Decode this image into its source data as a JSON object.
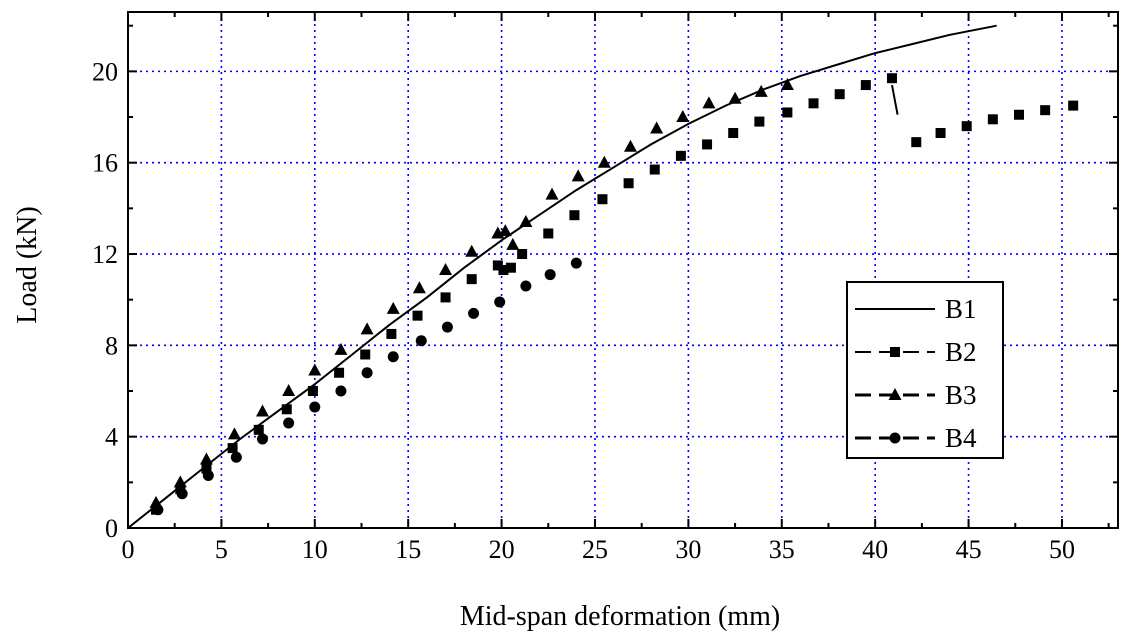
{
  "chart_data": {
    "type": "scatter",
    "xlabel": "Mid-span deformation (mm)",
    "ylabel": "Load (kN)",
    "xlim": [
      0,
      53
    ],
    "ylim": [
      0,
      22.6
    ],
    "xticks": [
      0,
      5,
      10,
      15,
      20,
      25,
      30,
      35,
      40,
      45,
      50
    ],
    "yticks": [
      0,
      4,
      8,
      12,
      16,
      20
    ],
    "grid": true,
    "grid_style": "dotted blue",
    "legend_position": "center-right",
    "series": [
      {
        "name": "B1",
        "style": "solid line",
        "points": [
          [
            0,
            0
          ],
          [
            2,
            1.3
          ],
          [
            4,
            2.6
          ],
          [
            6,
            3.9
          ],
          [
            8,
            5.1
          ],
          [
            10,
            6.3
          ],
          [
            12,
            7.6
          ],
          [
            14,
            8.9
          ],
          [
            16,
            10.1
          ],
          [
            18,
            11.4
          ],
          [
            20,
            12.6
          ],
          [
            22,
            13.7
          ],
          [
            24,
            14.8
          ],
          [
            26,
            15.8
          ],
          [
            28,
            16.8
          ],
          [
            30,
            17.7
          ],
          [
            32,
            18.5
          ],
          [
            34,
            19.2
          ],
          [
            36,
            19.8
          ],
          [
            38,
            20.3
          ],
          [
            40,
            20.8
          ],
          [
            42,
            21.2
          ],
          [
            44,
            21.6
          ],
          [
            46.5,
            22.0
          ]
        ]
      },
      {
        "name": "B2",
        "style": "square markers with dashed line",
        "points": [
          [
            1.5,
            0.8
          ],
          [
            2.8,
            1.7
          ],
          [
            4.2,
            2.6
          ],
          [
            5.6,
            3.5
          ],
          [
            7,
            4.3
          ],
          [
            8.5,
            5.2
          ],
          [
            9.9,
            6.0
          ],
          [
            11.3,
            6.8
          ],
          [
            12.7,
            7.6
          ],
          [
            14.1,
            8.5
          ],
          [
            15.5,
            9.3
          ],
          [
            17,
            10.1
          ],
          [
            18.4,
            10.9
          ],
          [
            19.8,
            11.5
          ],
          [
            20.1,
            11.3
          ],
          [
            20.5,
            11.4
          ],
          [
            21.1,
            12.0
          ],
          [
            22.5,
            12.9
          ],
          [
            23.9,
            13.7
          ],
          [
            25.4,
            14.4
          ],
          [
            26.8,
            15.1
          ],
          [
            28.2,
            15.7
          ],
          [
            29.6,
            16.3
          ],
          [
            31,
            16.8
          ],
          [
            32.4,
            17.3
          ],
          [
            33.8,
            17.8
          ],
          [
            35.3,
            18.2
          ],
          [
            36.7,
            18.6
          ],
          [
            38.1,
            19.0
          ],
          [
            39.5,
            19.4
          ],
          [
            40.9,
            19.7
          ],
          [
            42.2,
            16.9
          ],
          [
            43.5,
            17.3
          ],
          [
            44.9,
            17.6
          ],
          [
            46.3,
            17.9
          ],
          [
            47.7,
            18.1
          ],
          [
            49.1,
            18.3
          ],
          [
            50.6,
            18.5
          ]
        ]
      },
      {
        "name": "B3",
        "style": "triangle markers with dashed line",
        "points": [
          [
            1.5,
            1.1
          ],
          [
            2.8,
            2.0
          ],
          [
            4.2,
            3.0
          ],
          [
            5.7,
            4.1
          ],
          [
            7.2,
            5.1
          ],
          [
            8.6,
            6.0
          ],
          [
            10,
            6.9
          ],
          [
            11.4,
            7.8
          ],
          [
            12.8,
            8.7
          ],
          [
            14.2,
            9.6
          ],
          [
            15.6,
            10.5
          ],
          [
            17,
            11.3
          ],
          [
            18.4,
            12.1
          ],
          [
            19.8,
            12.9
          ],
          [
            20.2,
            13.0
          ],
          [
            20.6,
            12.4
          ],
          [
            21.3,
            13.4
          ],
          [
            22.7,
            14.6
          ],
          [
            24.1,
            15.4
          ],
          [
            25.5,
            16.0
          ],
          [
            26.9,
            16.7
          ],
          [
            28.3,
            17.5
          ],
          [
            29.7,
            18.0
          ],
          [
            31.1,
            18.6
          ],
          [
            32.5,
            18.8
          ],
          [
            33.9,
            19.1
          ],
          [
            35.3,
            19.4
          ]
        ]
      },
      {
        "name": "B4",
        "style": "circle markers with dashed line",
        "points": [
          [
            1.6,
            0.8
          ],
          [
            2.9,
            1.5
          ],
          [
            4.3,
            2.3
          ],
          [
            5.8,
            3.1
          ],
          [
            7.2,
            3.9
          ],
          [
            8.6,
            4.6
          ],
          [
            10,
            5.3
          ],
          [
            11.4,
            6.0
          ],
          [
            12.8,
            6.8
          ],
          [
            14.2,
            7.5
          ],
          [
            15.7,
            8.2
          ],
          [
            17.1,
            8.8
          ],
          [
            18.5,
            9.4
          ],
          [
            19.9,
            9.9
          ],
          [
            21.3,
            10.6
          ],
          [
            22.6,
            11.1
          ],
          [
            24,
            11.6
          ]
        ]
      }
    ]
  }
}
